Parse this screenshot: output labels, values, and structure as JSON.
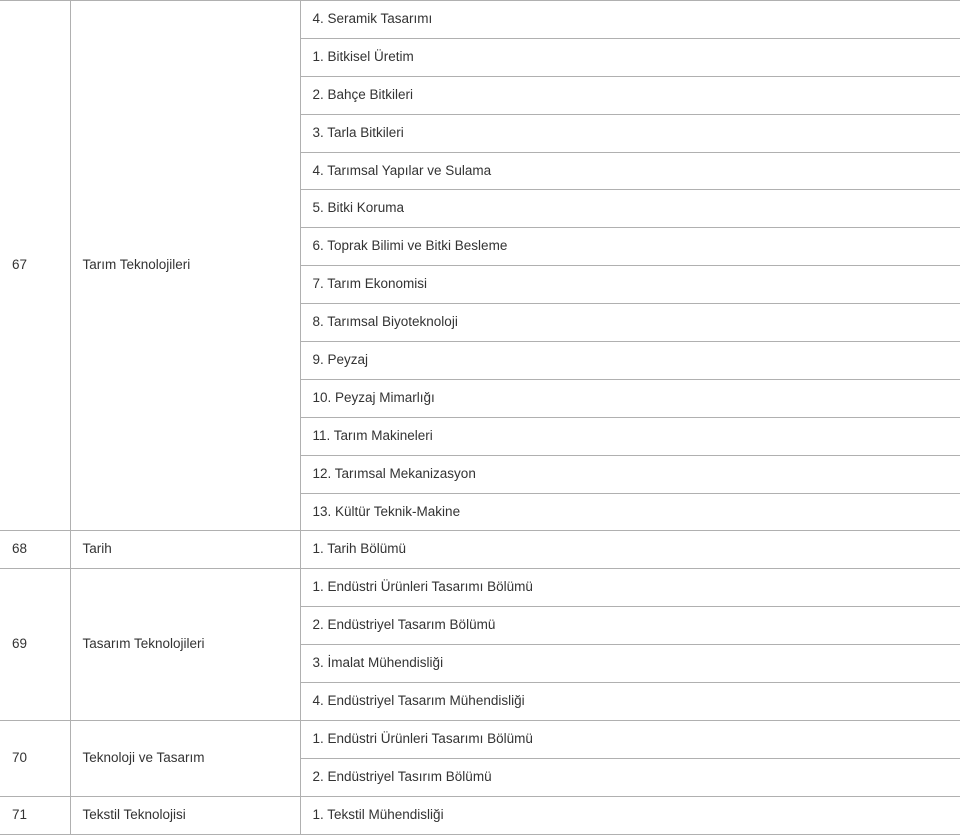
{
  "rows": [
    {
      "num": "67",
      "name": "Tarım Teknolojileri",
      "items": [
        "4. Seramik Tasarımı",
        "1. Bitkisel Üretim",
        "2. Bahçe Bitkileri",
        "3. Tarla Bitkileri",
        "4. Tarımsal Yapılar ve Sulama",
        "5. Bitki Koruma",
        "6. Toprak Bilimi ve Bitki Besleme",
        "7. Tarım Ekonomisi",
        "8. Tarımsal Biyoteknoloji",
        "9. Peyzaj",
        "10. Peyzaj Mimarlığı",
        "11. Tarım Makineleri",
        "12. Tarımsal Mekanizasyon",
        "13. Kültür Teknik-Makine"
      ],
      "labelAt": 6
    },
    {
      "num": "68",
      "name": "Tarih",
      "items": [
        "1. Tarih Bölümü"
      ],
      "labelAt": 0
    },
    {
      "num": "69",
      "name": "Tasarım Teknolojileri",
      "items": [
        "1. Endüstri Ürünleri Tasarımı Bölümü",
        "2. Endüstriyel Tasarım Bölümü",
        "3. İmalat Mühendisliği",
        "4. Endüstriyel Tasarım Mühendisliği"
      ],
      "labelAt": 1
    },
    {
      "num": "70",
      "name": "Teknoloji ve Tasarım",
      "items": [
        "1. Endüstri Ürünleri Tasarımı Bölümü",
        "2. Endüstriyel Tasırım Bölümü"
      ],
      "labelAt": 0
    },
    {
      "num": "71",
      "name": "Tekstil Teknolojisi",
      "items": [
        "1. Tekstil Mühendisliği"
      ],
      "labelAt": 0
    }
  ],
  "colors": {
    "border": "#b0b0b0",
    "text": "#333333",
    "bg": "#ffffff"
  },
  "fontFamily": "Segoe UI, Arial, sans-serif",
  "fontSize": 13.5,
  "colWidths": {
    "c1": 70,
    "c2": 230
  }
}
